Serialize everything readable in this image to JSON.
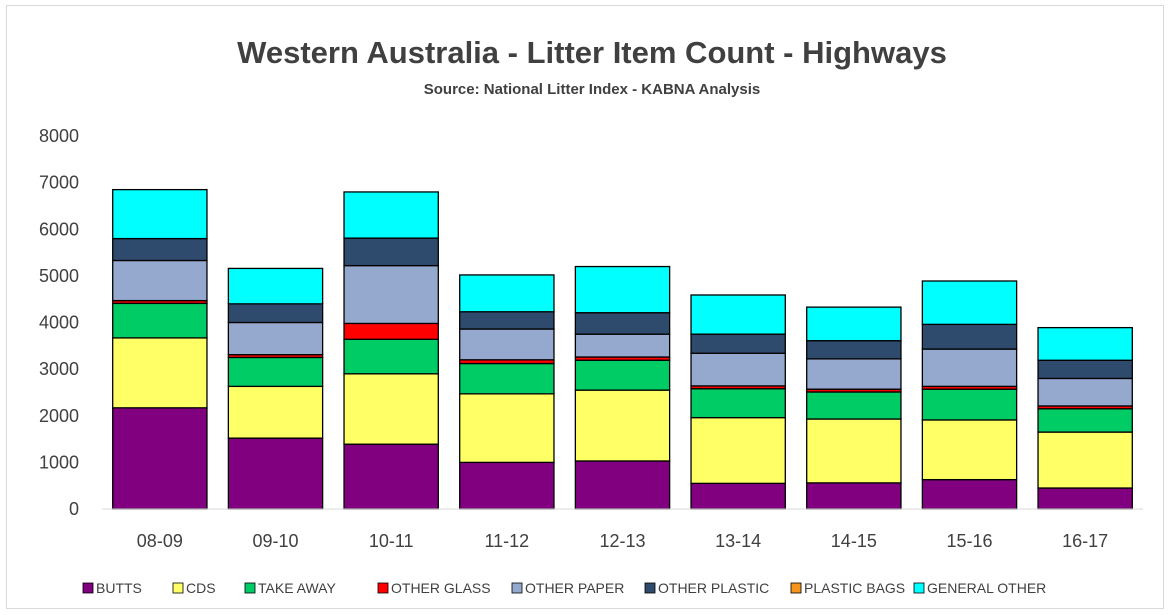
{
  "chart_data": {
    "type": "bar",
    "stacked": true,
    "title": "Western Australia  - Litter Item Count - Highways",
    "subtitle": "Source: National Litter Index - KABNA Analysis",
    "categories": [
      "08-09",
      "09-10",
      "10-11",
      "11-12",
      "12-13",
      "13-14",
      "14-15",
      "15-16",
      "16-17"
    ],
    "ylim": [
      0,
      8000
    ],
    "yticks": [
      0,
      1000,
      2000,
      3000,
      4000,
      5000,
      6000,
      7000,
      8000
    ],
    "grid": false,
    "legend_position": "bottom",
    "series": [
      {
        "name": "BUTTS",
        "color": "#800080",
        "values": [
          2170,
          1520,
          1390,
          1000,
          1030,
          550,
          560,
          630,
          450
        ]
      },
      {
        "name": "CDS",
        "color": "#ffff66",
        "values": [
          1500,
          1110,
          1510,
          1470,
          1520,
          1410,
          1370,
          1280,
          1200
        ]
      },
      {
        "name": "TAKE AWAY",
        "color": "#00cc66",
        "values": [
          740,
          620,
          740,
          650,
          640,
          620,
          580,
          660,
          500
        ]
      },
      {
        "name": "OTHER GLASS",
        "color": "#ff0000",
        "values": [
          60,
          60,
          340,
          80,
          70,
          60,
          60,
          60,
          60
        ]
      },
      {
        "name": "OTHER PAPER",
        "color": "#95a9cf",
        "values": [
          860,
          690,
          1240,
          660,
          490,
          700,
          650,
          800,
          590
        ]
      },
      {
        "name": "OTHER PLASTIC",
        "color": "#2e4b6e",
        "values": [
          470,
          400,
          590,
          370,
          460,
          410,
          390,
          530,
          390
        ]
      },
      {
        "name": "PLASTIC BAGS",
        "color": "#f7941d",
        "values": [
          0,
          0,
          0,
          0,
          0,
          0,
          0,
          0,
          0
        ]
      },
      {
        "name": "GENERAL OTHER",
        "color": "#00ffff",
        "values": [
          1050,
          760,
          990,
          790,
          990,
          840,
          720,
          930,
          700
        ]
      }
    ]
  }
}
